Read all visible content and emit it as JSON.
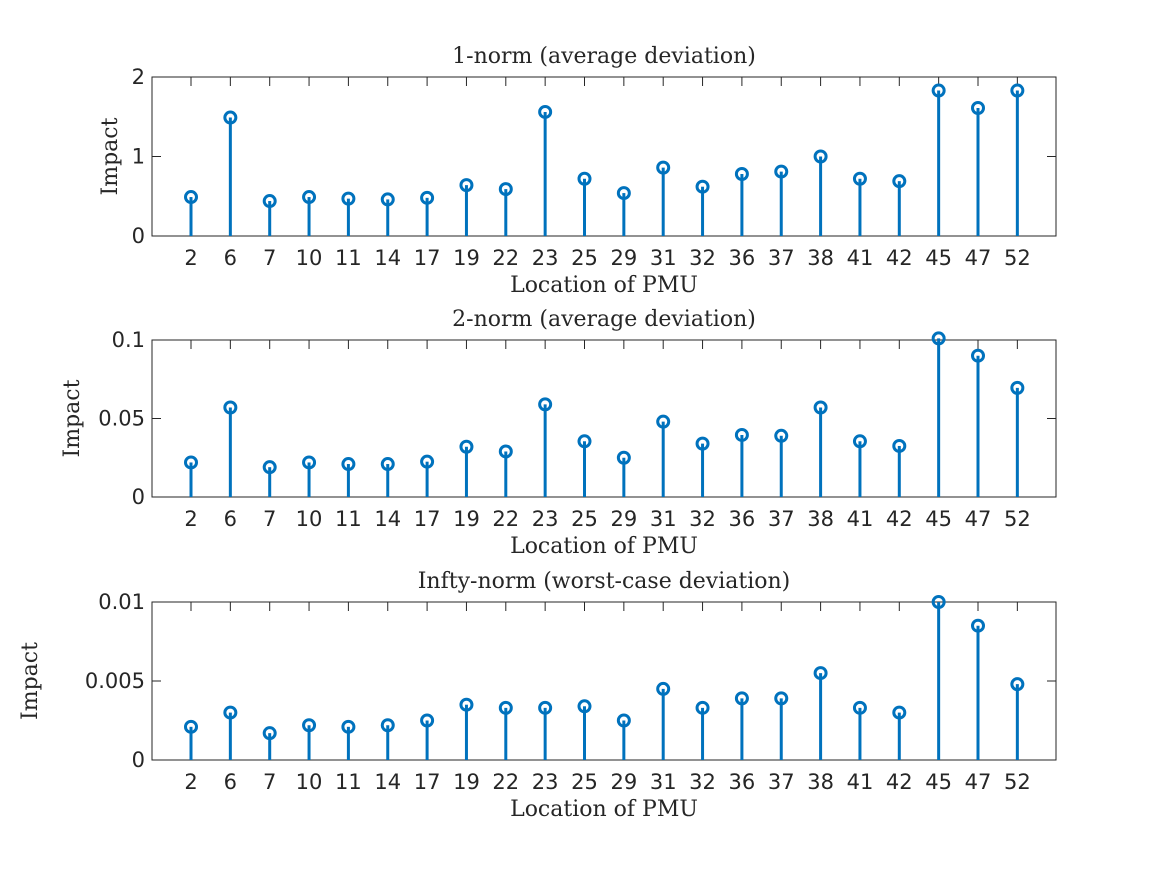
{
  "chart_data": [
    {
      "type": "stem",
      "title": "1-norm (average deviation)",
      "xlabel": "Location of PMU",
      "ylabel": "Impact",
      "categories": [
        "2",
        "6",
        "7",
        "10",
        "11",
        "14",
        "17",
        "19",
        "22",
        "23",
        "25",
        "29",
        "31",
        "32",
        "36",
        "37",
        "38",
        "41",
        "42",
        "45",
        "47",
        "52"
      ],
      "values": [
        0.49,
        1.49,
        0.44,
        0.49,
        0.47,
        0.46,
        0.48,
        0.64,
        0.59,
        1.56,
        0.72,
        0.54,
        0.86,
        0.62,
        0.78,
        0.81,
        1.0,
        0.72,
        0.69,
        1.83,
        1.61,
        1.83
      ],
      "ylim": [
        0,
        2
      ],
      "yticks": [
        0,
        1,
        2
      ],
      "ytick_labels": [
        "0",
        "1",
        "2"
      ],
      "color": "#0072BD"
    },
    {
      "type": "stem",
      "title": "2-norm (average deviation)",
      "xlabel": "Location of PMU",
      "ylabel": "Impact",
      "categories": [
        "2",
        "6",
        "7",
        "10",
        "11",
        "14",
        "17",
        "19",
        "22",
        "23",
        "25",
        "29",
        "31",
        "32",
        "36",
        "37",
        "38",
        "41",
        "42",
        "45",
        "47",
        "52"
      ],
      "values": [
        0.022,
        0.057,
        0.019,
        0.022,
        0.021,
        0.021,
        0.0225,
        0.032,
        0.029,
        0.059,
        0.0355,
        0.025,
        0.048,
        0.034,
        0.0395,
        0.039,
        0.057,
        0.0355,
        0.0325,
        0.101,
        0.09,
        0.0695
      ],
      "ylim": [
        0,
        0.1
      ],
      "yticks": [
        0,
        0.05,
        0.1
      ],
      "ytick_labels": [
        "0",
        "0.05",
        "0.1"
      ],
      "color": "#0072BD"
    },
    {
      "type": "stem",
      "title": "Infty-norm (worst-case deviation)",
      "xlabel": "Location of PMU",
      "ylabel": "Impact",
      "categories": [
        "2",
        "6",
        "7",
        "10",
        "11",
        "14",
        "17",
        "19",
        "22",
        "23",
        "25",
        "29",
        "31",
        "32",
        "36",
        "37",
        "38",
        "41",
        "42",
        "45",
        "47",
        "52"
      ],
      "values": [
        0.0021,
        0.003,
        0.0017,
        0.0022,
        0.0021,
        0.0022,
        0.0025,
        0.0035,
        0.0033,
        0.0033,
        0.0034,
        0.0025,
        0.0045,
        0.0033,
        0.0039,
        0.0039,
        0.0055,
        0.0033,
        0.003,
        0.01,
        0.0085,
        0.0048
      ],
      "ylim": [
        0,
        0.01
      ],
      "yticks": [
        0,
        0.005,
        0.01
      ],
      "ytick_labels": [
        "0",
        "0.005",
        "0.01"
      ],
      "color": "#0072BD"
    }
  ]
}
